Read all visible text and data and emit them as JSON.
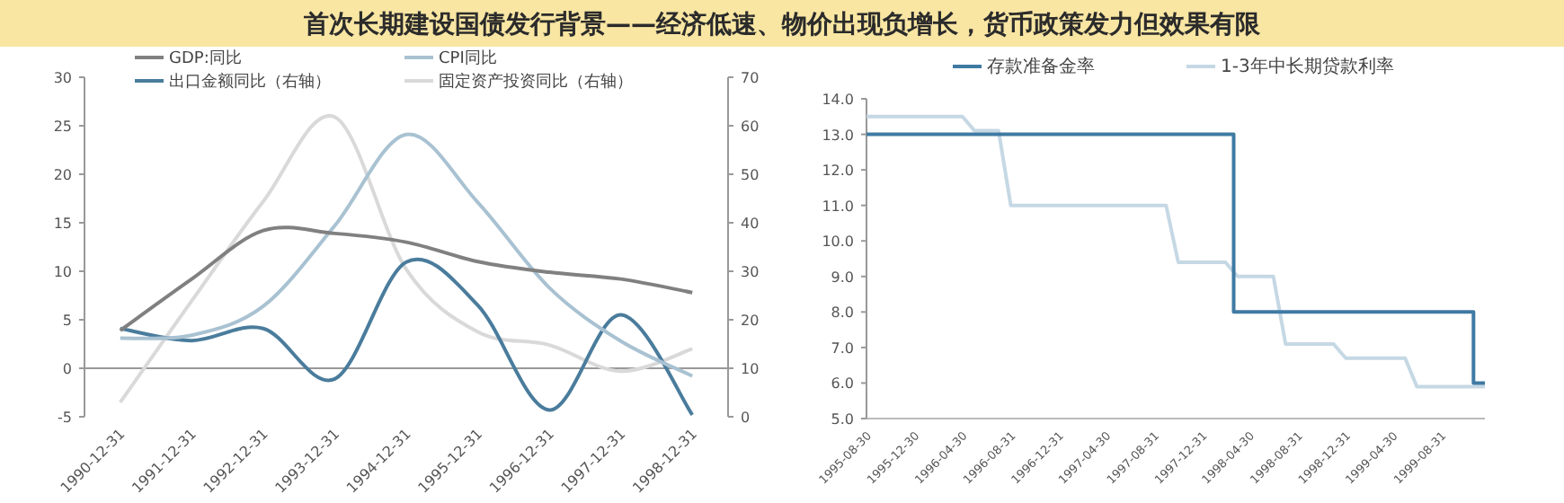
{
  "chart_data": [
    {
      "type": "line",
      "title": "首次长期建设国债发行背景——经济低速、物价出现负增长，货币政策发力但效果有限",
      "categories": [
        "1990-12-31",
        "1991-12-31",
        "1992-12-31",
        "1993-12-31",
        "1994-12-31",
        "1995-12-31",
        "1996-12-31",
        "1997-12-31",
        "1998-12-31"
      ],
      "series": [
        {
          "name": "GDP:同比",
          "color": "#808080",
          "values": [
            3.9,
            9.2,
            14.2,
            13.9,
            13.0,
            11.0,
            9.9,
            9.2,
            7.8
          ]
        },
        {
          "name": "CPI同比",
          "color": "#a9c2d2",
          "values": [
            3.1,
            3.4,
            6.4,
            14.7,
            24.1,
            17.1,
            8.3,
            2.8,
            -0.8
          ]
        },
        {
          "name": "出口金额同比（右轴）",
          "color": "#4a7c9c",
          "axis": "y2",
          "values": [
            18.2,
            15.7,
            18.2,
            7.8,
            31.9,
            23.0,
            1.4,
            21.0,
            0.4
          ]
        },
        {
          "name": "固定资产投资同比（右轴）",
          "color": "#d9d9d9",
          "axis": "y2",
          "values": [
            3.0,
            23.9,
            44.4,
            61.8,
            30.4,
            17.5,
            14.8,
            9.4,
            14.0
          ]
        }
      ],
      "ylim": [
        -5,
        30
      ],
      "yticks": [
        -5,
        0,
        5,
        10,
        15,
        20,
        25,
        30
      ],
      "y2lim": [
        0,
        70
      ],
      "y2ticks": [
        0,
        10,
        20,
        30,
        40,
        50,
        60,
        70
      ],
      "legend": "top"
    },
    {
      "type": "line",
      "xlim": [
        "1995-08-30",
        "1999-12-20"
      ],
      "xticks": [
        "1995-08-30",
        "1995-12-30",
        "1996-04-30",
        "1996-08-31",
        "1996-12-31",
        "1997-04-30",
        "1997-08-31",
        "1997-12-31",
        "1998-04-30",
        "1998-08-31",
        "1998-12-31",
        "1999-04-30",
        "1999-08-31"
      ],
      "series": [
        {
          "name": "存款准备金率",
          "color": "#3f7aa3",
          "type": "step",
          "x": [
            "1995-08-30",
            "1998-03-21",
            "1999-11-21",
            "1999-12-20"
          ],
          "values": [
            13.0,
            8.0,
            6.0,
            6.0
          ]
        },
        {
          "name": "1-3年中长期贷款利率",
          "color": "#c5d8e4",
          "x": [
            "1995-08-30",
            "1996-04-30",
            "1996-05-31",
            "1996-07-31",
            "1996-08-31",
            "1997-09-30",
            "1997-10-31",
            "1998-02-28",
            "1998-03-31",
            "1998-06-30",
            "1998-07-31",
            "1998-11-30",
            "1998-12-31",
            "1999-05-31",
            "1999-06-30",
            "1999-12-20"
          ],
          "values": [
            13.5,
            13.5,
            13.1,
            13.1,
            11.0,
            11.0,
            9.4,
            9.4,
            9.0,
            9.0,
            7.1,
            7.1,
            6.7,
            6.7,
            5.9,
            5.9
          ]
        }
      ],
      "ylim": [
        5,
        14
      ],
      "yticks": [
        {
          "value": 5,
          "label": "5.0"
        },
        {
          "value": 6,
          "label": "6.0"
        },
        {
          "value": 7,
          "label": "7.0"
        },
        {
          "value": 8,
          "label": "8.0"
        },
        {
          "value": 9,
          "label": "9.0"
        },
        {
          "value": 10,
          "label": "10.0"
        },
        {
          "value": 11,
          "label": "11.0"
        },
        {
          "value": 12,
          "label": "12.0"
        },
        {
          "value": 13,
          "label": "13.0"
        },
        {
          "value": 14,
          "label": "14.0"
        }
      ],
      "legend": "top"
    }
  ]
}
